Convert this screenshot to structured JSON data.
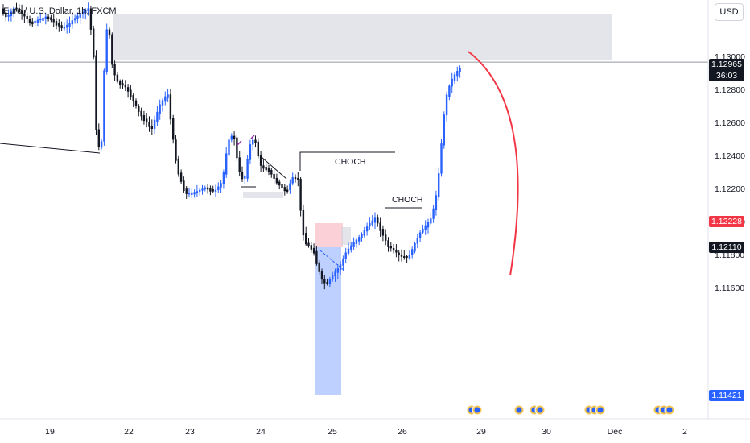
{
  "header": {
    "symbol_title": "Euro / U.S. Dollar, 1h, FXCM",
    "currency_button": "USD"
  },
  "annotations": {
    "choch_upper": "CHOCH",
    "choch_lower": "CHOCH"
  },
  "price_tags": {
    "current": {
      "price": "1.12965",
      "countdown": "36:03",
      "color": "#131722"
    },
    "red": {
      "price": "1.12228",
      "color": "#f23645"
    },
    "black": {
      "price": "1.12110",
      "color": "#131722"
    },
    "blue": {
      "price": "1.11421",
      "color": "#2962ff"
    }
  },
  "colors": {
    "bull": "#2962ff",
    "bear": "#131722",
    "supply_zone": "#d1d4dc",
    "target_zone": "#2962ff",
    "order_block": "#f7a1b0",
    "projection_arc": "#f23645"
  },
  "chart_data": {
    "type": "candlestick",
    "title": "Euro / U.S. Dollar, 1h, FXCM",
    "x_ticks": [
      "19",
      "22",
      "23",
      "24",
      "25",
      "26",
      "29",
      "30",
      "Dec",
      "2"
    ],
    "y_ticks": [
      "1.13000",
      "1.12800",
      "1.12600",
      "1.12400",
      "1.12200",
      "1.12000",
      "1.11800",
      "1.11600"
    ],
    "ylim": [
      1.1125,
      1.1318
    ],
    "current_price": 1.12965,
    "levels": [
      1.12965,
      1.12228,
      1.1211,
      1.11421
    ]
  }
}
